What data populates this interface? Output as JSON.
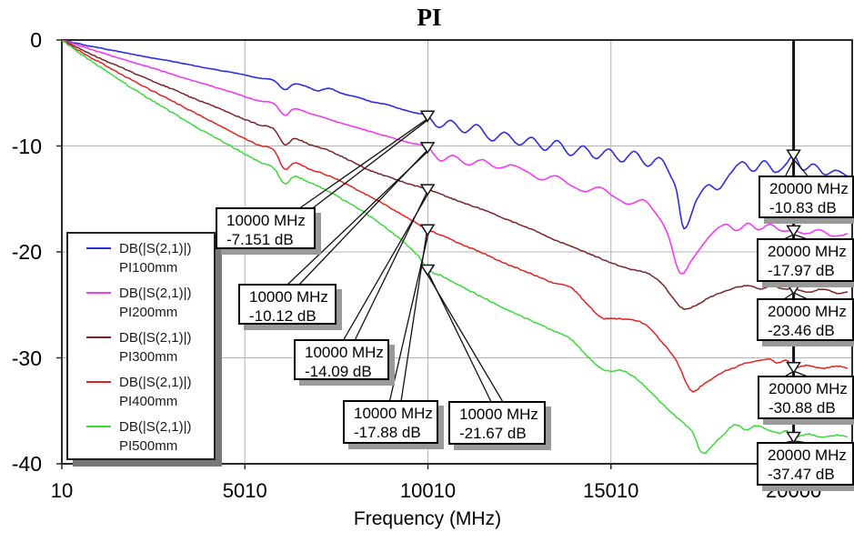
{
  "title": "PI",
  "chart_data": {
    "type": "line",
    "title": "PI",
    "xlabel": "Frequency (MHz)",
    "ylabel": "",
    "xlim": [
      10,
      21600
    ],
    "ylim": [
      -40,
      0
    ],
    "grid": true,
    "legend_position": "inside-left",
    "measure_line_x": 20000,
    "x_ticks": [
      {
        "value": 10,
        "label": "10"
      },
      {
        "value": 5010,
        "label": "5010"
      },
      {
        "value": 10010,
        "label": "10010"
      },
      {
        "value": 15010,
        "label": "15010"
      },
      {
        "value": 20000,
        "label": "20000"
      }
    ],
    "y_ticks": [
      {
        "value": 0,
        "label": "0"
      },
      {
        "value": -10,
        "label": "-10"
      },
      {
        "value": -20,
        "label": "-20"
      },
      {
        "value": -30,
        "label": "-30"
      },
      {
        "value": -40,
        "label": "-40"
      }
    ],
    "series": [
      {
        "name": "DB(|S(2,1)|) PI100mm",
        "legend_line1": "DB(|S(2,1)|)",
        "legend_line2": "PI100mm",
        "color": "#2d2de0",
        "points": [
          [
            10,
            0
          ],
          [
            600,
            -0.45
          ],
          [
            1200,
            -0.85
          ],
          [
            1800,
            -1.25
          ],
          [
            2400,
            -1.65
          ],
          [
            3000,
            -2.0
          ],
          [
            3600,
            -2.4
          ],
          [
            4200,
            -2.8
          ],
          [
            4800,
            -3.15
          ],
          [
            5400,
            -3.6
          ],
          [
            5800,
            -3.8
          ],
          [
            6100,
            -4.7
          ],
          [
            6350,
            -4.15
          ],
          [
            6700,
            -4.4
          ],
          [
            7000,
            -4.8
          ],
          [
            7300,
            -4.55
          ],
          [
            7700,
            -5.1
          ],
          [
            8100,
            -5.4
          ],
          [
            8500,
            -5.85
          ],
          [
            8900,
            -6.1
          ],
          [
            9300,
            -6.55
          ],
          [
            9700,
            -6.9
          ],
          [
            10000,
            -7.151
          ],
          [
            10300,
            -8.25
          ],
          [
            10650,
            -7.6
          ],
          [
            11000,
            -8.75
          ],
          [
            11350,
            -8.0
          ],
          [
            11750,
            -9.5
          ],
          [
            12100,
            -8.7
          ],
          [
            12500,
            -9.9
          ],
          [
            12850,
            -9.2
          ],
          [
            13200,
            -10.4
          ],
          [
            13550,
            -9.5
          ],
          [
            13900,
            -10.9
          ],
          [
            14250,
            -10.0
          ],
          [
            14600,
            -11.2
          ],
          [
            14950,
            -10.3
          ],
          [
            15300,
            -11.5
          ],
          [
            15650,
            -10.5
          ],
          [
            16000,
            -11.9
          ],
          [
            16350,
            -11.1
          ],
          [
            16650,
            -12.9
          ],
          [
            16800,
            -14.2
          ],
          [
            17000,
            -17.8
          ],
          [
            17350,
            -15.1
          ],
          [
            17650,
            -13.7
          ],
          [
            17950,
            -14.1
          ],
          [
            18250,
            -12.7
          ],
          [
            18600,
            -11.5
          ],
          [
            18900,
            -12.4
          ],
          [
            19200,
            -11.4
          ],
          [
            19500,
            -12.5
          ],
          [
            19800,
            -11.7
          ],
          [
            20000,
            -10.83
          ],
          [
            20250,
            -12.3
          ],
          [
            20550,
            -11.7
          ],
          [
            20850,
            -12.7
          ],
          [
            21150,
            -12.3
          ],
          [
            21500,
            -12.9
          ]
        ]
      },
      {
        "name": "DB(|S(2,1)|) PI200mm",
        "legend_line1": "DB(|S(2,1)|)",
        "legend_line2": "PI200mm",
        "color": "#f03cf0",
        "points": [
          [
            10,
            0
          ],
          [
            600,
            -0.65
          ],
          [
            1200,
            -1.3
          ],
          [
            1800,
            -1.95
          ],
          [
            2400,
            -2.55
          ],
          [
            3000,
            -3.2
          ],
          [
            3600,
            -3.85
          ],
          [
            4200,
            -4.45
          ],
          [
            4800,
            -5.1
          ],
          [
            5400,
            -5.75
          ],
          [
            5800,
            -6.0
          ],
          [
            6100,
            -7.1
          ],
          [
            6350,
            -6.5
          ],
          [
            6800,
            -6.95
          ],
          [
            7200,
            -7.35
          ],
          [
            7600,
            -7.8
          ],
          [
            8000,
            -8.2
          ],
          [
            8500,
            -8.7
          ],
          [
            9000,
            -9.2
          ],
          [
            9500,
            -9.7
          ],
          [
            10000,
            -10.12
          ],
          [
            10350,
            -11.4
          ],
          [
            10700,
            -10.9
          ],
          [
            11100,
            -11.8
          ],
          [
            11500,
            -11.3
          ],
          [
            11900,
            -12.1
          ],
          [
            12300,
            -11.8
          ],
          [
            12700,
            -12.4
          ],
          [
            13100,
            -13.2
          ],
          [
            13500,
            -12.8
          ],
          [
            13900,
            -13.7
          ],
          [
            14300,
            -14.3
          ],
          [
            14700,
            -13.9
          ],
          [
            15100,
            -14.8
          ],
          [
            15500,
            -15.5
          ],
          [
            15900,
            -15.1
          ],
          [
            16200,
            -16.2
          ],
          [
            16550,
            -18.2
          ],
          [
            16900,
            -22.0
          ],
          [
            17250,
            -20.6
          ],
          [
            17550,
            -19.2
          ],
          [
            17850,
            -18.0
          ],
          [
            18150,
            -17.4
          ],
          [
            18450,
            -18.0
          ],
          [
            18750,
            -17.3
          ],
          [
            19050,
            -17.9
          ],
          [
            19350,
            -17.4
          ],
          [
            19650,
            -18.0
          ],
          [
            20000,
            -17.97
          ],
          [
            20350,
            -18.3
          ],
          [
            20700,
            -17.9
          ],
          [
            21050,
            -18.5
          ],
          [
            21500,
            -18.3
          ]
        ]
      },
      {
        "name": "DB(|S(2,1)|) PI300mm",
        "legend_line1": "DB(|S(2,1)|)",
        "legend_line2": "PI300mm",
        "color": "#7b2424",
        "points": [
          [
            10,
            0
          ],
          [
            600,
            -1.0
          ],
          [
            1200,
            -1.95
          ],
          [
            1800,
            -2.85
          ],
          [
            2400,
            -3.75
          ],
          [
            3000,
            -4.6
          ],
          [
            3600,
            -5.5
          ],
          [
            4200,
            -6.3
          ],
          [
            4800,
            -7.2
          ],
          [
            5400,
            -8.0
          ],
          [
            5800,
            -8.4
          ],
          [
            6100,
            -9.9
          ],
          [
            6350,
            -9.3
          ],
          [
            6800,
            -9.9
          ],
          [
            7200,
            -10.3
          ],
          [
            7600,
            -10.9
          ],
          [
            8000,
            -11.6
          ],
          [
            8500,
            -12.4
          ],
          [
            9000,
            -13.0
          ],
          [
            9500,
            -13.6
          ],
          [
            10000,
            -14.09
          ],
          [
            10500,
            -14.75
          ],
          [
            11000,
            -15.4
          ],
          [
            11500,
            -16.0
          ],
          [
            12000,
            -16.7
          ],
          [
            12500,
            -17.4
          ],
          [
            13000,
            -18.1
          ],
          [
            13500,
            -18.9
          ],
          [
            14000,
            -19.6
          ],
          [
            14500,
            -20.3
          ],
          [
            15000,
            -21.0
          ],
          [
            15500,
            -21.6
          ],
          [
            16000,
            -22.0
          ],
          [
            16400,
            -23.0
          ],
          [
            16950,
            -25.3
          ],
          [
            17300,
            -25.1
          ],
          [
            17600,
            -24.5
          ],
          [
            17900,
            -24.0
          ],
          [
            18200,
            -23.6
          ],
          [
            18500,
            -23.3
          ],
          [
            18800,
            -23.2
          ],
          [
            19100,
            -23.5
          ],
          [
            19400,
            -23.2
          ],
          [
            19700,
            -23.5
          ],
          [
            20000,
            -23.46
          ],
          [
            20400,
            -23.8
          ],
          [
            20800,
            -23.5
          ],
          [
            21200,
            -23.9
          ],
          [
            21500,
            -23.8
          ]
        ]
      },
      {
        "name": "DB(|S(2,1)|) PI400mm",
        "legend_line1": "DB(|S(2,1)|)",
        "legend_line2": "PI400mm",
        "color": "#e32222",
        "points": [
          [
            10,
            0
          ],
          [
            600,
            -1.25
          ],
          [
            1200,
            -2.4
          ],
          [
            1800,
            -3.55
          ],
          [
            2400,
            -4.65
          ],
          [
            3000,
            -5.7
          ],
          [
            3600,
            -6.8
          ],
          [
            4200,
            -7.85
          ],
          [
            4800,
            -8.95
          ],
          [
            5400,
            -9.95
          ],
          [
            5800,
            -10.4
          ],
          [
            6100,
            -12.2
          ],
          [
            6350,
            -11.6
          ],
          [
            6800,
            -12.2
          ],
          [
            7200,
            -12.7
          ],
          [
            7600,
            -13.3
          ],
          [
            8000,
            -14.0
          ],
          [
            8500,
            -14.9
          ],
          [
            9000,
            -15.9
          ],
          [
            9500,
            -16.9
          ],
          [
            10000,
            -17.88
          ],
          [
            10500,
            -18.6
          ],
          [
            11000,
            -19.4
          ],
          [
            11500,
            -20.1
          ],
          [
            12000,
            -20.9
          ],
          [
            12500,
            -21.6
          ],
          [
            13000,
            -22.3
          ],
          [
            13500,
            -23.0
          ],
          [
            13900,
            -23.3
          ],
          [
            14300,
            -24.7
          ],
          [
            14750,
            -26.2
          ],
          [
            15100,
            -26.3
          ],
          [
            15600,
            -26.4
          ],
          [
            16000,
            -27.0
          ],
          [
            16450,
            -28.7
          ],
          [
            16800,
            -30.3
          ],
          [
            17200,
            -33.1
          ],
          [
            17500,
            -32.6
          ],
          [
            17800,
            -31.9
          ],
          [
            18100,
            -31.3
          ],
          [
            18400,
            -30.9
          ],
          [
            18700,
            -30.5
          ],
          [
            19000,
            -30.3
          ],
          [
            19300,
            -30.1
          ],
          [
            19600,
            -30.5
          ],
          [
            19800,
            -30.2
          ],
          [
            20000,
            -30.88
          ],
          [
            20400,
            -30.7
          ],
          [
            20800,
            -31.0
          ],
          [
            21200,
            -30.8
          ],
          [
            21500,
            -31.0
          ]
        ]
      },
      {
        "name": "DB(|S(2,1)|) PI500mm",
        "legend_line1": "DB(|S(2,1)|)",
        "legend_line2": "PI500mm",
        "color": "#3ada3a",
        "points": [
          [
            10,
            0
          ],
          [
            600,
            -1.5
          ],
          [
            1200,
            -2.9
          ],
          [
            1800,
            -4.25
          ],
          [
            2400,
            -5.55
          ],
          [
            3000,
            -6.8
          ],
          [
            3600,
            -8.05
          ],
          [
            4200,
            -9.2
          ],
          [
            4800,
            -10.35
          ],
          [
            5400,
            -11.5
          ],
          [
            5800,
            -12.1
          ],
          [
            6100,
            -13.6
          ],
          [
            6350,
            -12.9
          ],
          [
            6800,
            -13.5
          ],
          [
            7200,
            -14.1
          ],
          [
            7600,
            -14.9
          ],
          [
            8000,
            -15.7
          ],
          [
            8500,
            -16.8
          ],
          [
            9000,
            -18.1
          ],
          [
            9400,
            -19.2
          ],
          [
            9800,
            -20.6
          ],
          [
            10000,
            -21.67
          ],
          [
            10400,
            -22.3
          ],
          [
            10900,
            -23.2
          ],
          [
            11400,
            -24.1
          ],
          [
            11900,
            -25.0
          ],
          [
            12400,
            -25.8
          ],
          [
            12900,
            -26.6
          ],
          [
            13400,
            -27.4
          ],
          [
            13900,
            -28.2
          ],
          [
            14300,
            -29.6
          ],
          [
            14700,
            -30.9
          ],
          [
            15000,
            -31.3
          ],
          [
            15300,
            -31.2
          ],
          [
            15600,
            -31.7
          ],
          [
            16000,
            -32.9
          ],
          [
            16400,
            -34.3
          ],
          [
            16700,
            -35.3
          ],
          [
            17000,
            -36.2
          ],
          [
            17250,
            -37.1
          ],
          [
            17500,
            -39.0
          ],
          [
            17800,
            -38.2
          ],
          [
            18100,
            -37.2
          ],
          [
            18400,
            -36.3
          ],
          [
            18700,
            -36.8
          ],
          [
            19000,
            -36.4
          ],
          [
            19300,
            -36.8
          ],
          [
            19600,
            -37.1
          ],
          [
            19800,
            -36.9
          ],
          [
            20000,
            -37.47
          ],
          [
            20400,
            -37.2
          ],
          [
            20800,
            -37.5
          ],
          [
            21200,
            -37.3
          ],
          [
            21500,
            -37.5
          ]
        ]
      }
    ],
    "annotations": [
      {
        "series": 0,
        "x": 10000,
        "y": -7.151,
        "line1": "10000 MHz",
        "line2": "-7.151 dB"
      },
      {
        "series": 1,
        "x": 10000,
        "y": -10.12,
        "line1": "10000 MHz",
        "line2": "-10.12 dB"
      },
      {
        "series": 2,
        "x": 10000,
        "y": -14.09,
        "line1": "10000 MHz",
        "line2": "-14.09 dB"
      },
      {
        "series": 3,
        "x": 10000,
        "y": -17.88,
        "line1": "10000 MHz",
        "line2": "-17.88 dB"
      },
      {
        "series": 4,
        "x": 10000,
        "y": -21.67,
        "line1": "10000 MHz",
        "line2": "-21.67 dB"
      },
      {
        "series": 0,
        "x": 20000,
        "y": -10.83,
        "line1": "20000 MHz",
        "line2": "-10.83 dB"
      },
      {
        "series": 1,
        "x": 20000,
        "y": -17.97,
        "line1": "20000 MHz",
        "line2": "-17.97 dB"
      },
      {
        "series": 2,
        "x": 20000,
        "y": -23.46,
        "line1": "20000 MHz",
        "line2": "-23.46 dB"
      },
      {
        "series": 3,
        "x": 20000,
        "y": -30.88,
        "line1": "20000 MHz",
        "line2": "-30.88 dB"
      },
      {
        "series": 4,
        "x": 20000,
        "y": -37.47,
        "line1": "20000 MHz",
        "line2": "-37.47 dB"
      }
    ],
    "colors": {
      "grid": "#b4b4b4",
      "frame": "#2a2a2a",
      "measure_line": "#111111",
      "text": "#000000"
    }
  }
}
